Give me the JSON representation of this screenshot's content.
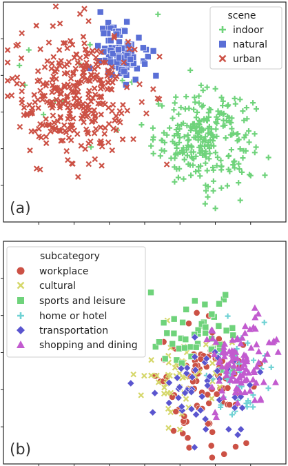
{
  "chart_data": [
    {
      "type": "scatter",
      "panel_label": "(a)",
      "legend": {
        "title": "scene",
        "placement": "top-right"
      },
      "grid": false,
      "xlim": [
        0,
        100
      ],
      "ylim": [
        0,
        100
      ],
      "series": [
        {
          "name": "indoor",
          "color": "#6fd37b",
          "marker": "plus",
          "clusters": [
            {
              "cx": 71,
              "cy": 38,
              "sx": 11,
              "sy": 13,
              "n": 260
            },
            {
              "cx": 30,
              "cy": 60,
              "sx": 18,
              "sy": 20,
              "n": 12
            }
          ]
        },
        {
          "name": "natural",
          "color": "#5a6fd6",
          "marker": "square",
          "clusters": [
            {
              "cx": 42,
              "cy": 78,
              "sx": 5,
              "sy": 8,
              "n": 95
            }
          ]
        },
        {
          "name": "urban",
          "color": "#cc5145",
          "marker": "x",
          "clusters": [
            {
              "cx": 25,
              "cy": 58,
              "sx": 14,
              "sy": 19,
              "n": 330
            }
          ]
        }
      ]
    },
    {
      "type": "scatter",
      "panel_label": "(b)",
      "legend": {
        "title": "subcategory",
        "placement": "top-left"
      },
      "grid": false,
      "xlim": [
        0,
        100
      ],
      "ylim": [
        0,
        100
      ],
      "series": [
        {
          "name": "workplace",
          "color": "#cc5145",
          "marker": "circle",
          "clusters": [
            {
              "cx": 72,
              "cy": 35,
              "sx": 9,
              "sy": 15,
              "n": 90
            }
          ]
        },
        {
          "name": "cultural",
          "color": "#d5d76a",
          "marker": "x",
          "clusters": [
            {
              "cx": 62,
              "cy": 40,
              "sx": 10,
              "sy": 12,
              "n": 55
            }
          ]
        },
        {
          "name": "sports and leisure",
          "color": "#6fd37b",
          "marker": "square",
          "clusters": [
            {
              "cx": 70,
              "cy": 55,
              "sx": 9,
              "sy": 12,
              "n": 50
            }
          ]
        },
        {
          "name": "home or hotel",
          "color": "#6fd2d4",
          "marker": "plus",
          "clusters": [
            {
              "cx": 82,
              "cy": 38,
              "sx": 7,
              "sy": 11,
              "n": 40
            }
          ]
        },
        {
          "name": "transportation",
          "color": "#5a55cf",
          "marker": "diamond",
          "clusters": [
            {
              "cx": 70,
              "cy": 33,
              "sx": 12,
              "sy": 15,
              "n": 50
            }
          ]
        },
        {
          "name": "shopping and dining",
          "color": "#c25bcf",
          "marker": "triangle",
          "clusters": [
            {
              "cx": 85,
              "cy": 45,
              "sx": 8,
              "sy": 13,
              "n": 100
            }
          ]
        }
      ]
    }
  ]
}
